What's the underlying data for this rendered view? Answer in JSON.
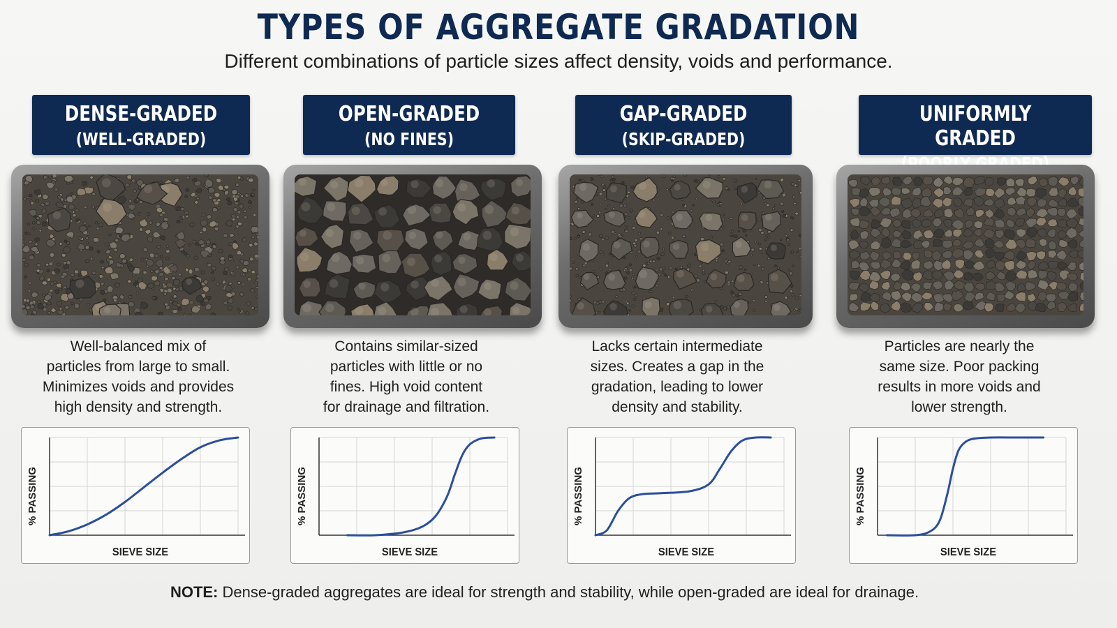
{
  "title": "TYPES OF AGGREGATE GRADATION",
  "subtitle": "Different combinations of particle sizes affect density, voids and performance.",
  "colors": {
    "header_bg": "#0f2a52",
    "curve": "#2a4f9a",
    "grid": "#d4d4d4"
  },
  "panels": [
    {
      "heading": "DENSE-GRADED",
      "subheading": "(WELL-GRADED)",
      "image": "tray-well-graded-aggregate",
      "description": [
        "Well-balanced mix of",
        "particles from large to small.",
        "Minimizes voids and provides",
        "high density and strength."
      ],
      "ylabel": "% PASSING",
      "xlabel": "SIEVE SIZE"
    },
    {
      "heading": "OPEN-GRADED",
      "subheading": "(NO FINES)",
      "image": "tray-open-graded-aggregate",
      "description": [
        "Contains similar-sized",
        "particles with little or no",
        "fines. High void content",
        "for drainage and filtration."
      ],
      "ylabel": "% PASSING",
      "xlabel": "SIEVE SIZE"
    },
    {
      "heading": "GAP-GRADED",
      "subheading": "(SKIP-GRADED)",
      "image": "tray-gap-graded-aggregate",
      "description": [
        "Lacks certain intermediate",
        "sizes. Creates a gap in the",
        "gradation, leading to lower",
        "density and stability."
      ],
      "ylabel": "% PASSING",
      "xlabel": "SIEVE SIZE"
    },
    {
      "heading": "UNIFORMLY GRADED",
      "subheading": "(POORLY GRADED)",
      "image": "tray-uniformly-graded-aggregate",
      "description": [
        "Particles are nearly the",
        "same size. Poor packing",
        "results in more voids and",
        "lower strength."
      ],
      "ylabel": "% PASSING",
      "xlabel": "SIEVE SIZE"
    }
  ],
  "chart_data": [
    {
      "type": "line",
      "title": "",
      "xlabel": "SIEVE SIZE",
      "ylabel": "% PASSING",
      "xlim": [
        0,
        1
      ],
      "ylim": [
        0,
        1
      ],
      "grid": true,
      "x": [
        0,
        0.1,
        0.2,
        0.3,
        0.4,
        0.5,
        0.6,
        0.7,
        0.8,
        0.9,
        1.0
      ],
      "y": [
        0,
        0.04,
        0.11,
        0.21,
        0.34,
        0.49,
        0.64,
        0.78,
        0.9,
        0.97,
        1.0
      ]
    },
    {
      "type": "line",
      "title": "",
      "xlabel": "SIEVE SIZE",
      "ylabel": "% PASSING",
      "xlim": [
        0,
        1
      ],
      "ylim": [
        0,
        1
      ],
      "grid": true,
      "x": [
        0.15,
        0.3,
        0.45,
        0.55,
        0.62,
        0.68,
        0.72,
        0.76,
        0.8,
        0.86,
        0.93
      ],
      "y": [
        0,
        0.0,
        0.03,
        0.09,
        0.2,
        0.4,
        0.62,
        0.82,
        0.93,
        0.99,
        1.0
      ]
    },
    {
      "type": "line",
      "title": "",
      "xlabel": "SIEVE SIZE",
      "ylabel": "% PASSING",
      "xlim": [
        0,
        1
      ],
      "ylim": [
        0,
        1
      ],
      "grid": true,
      "x": [
        0,
        0.06,
        0.12,
        0.18,
        0.25,
        0.35,
        0.5,
        0.6,
        0.66,
        0.72,
        0.78,
        0.85,
        0.93
      ],
      "y": [
        0,
        0.05,
        0.25,
        0.38,
        0.42,
        0.43,
        0.45,
        0.52,
        0.68,
        0.86,
        0.97,
        1.0,
        1.0
      ]
    },
    {
      "type": "line",
      "title": "",
      "xlabel": "SIEVE SIZE",
      "ylabel": "% PASSING",
      "xlim": [
        0,
        1
      ],
      "ylim": [
        0,
        1
      ],
      "grid": true,
      "x": [
        0.05,
        0.2,
        0.28,
        0.33,
        0.37,
        0.4,
        0.43,
        0.47,
        0.52,
        0.6,
        0.75,
        0.88
      ],
      "y": [
        0,
        0.0,
        0.04,
        0.15,
        0.42,
        0.68,
        0.87,
        0.96,
        0.99,
        1.0,
        1.0,
        1.0
      ]
    }
  ],
  "note": {
    "label": "NOTE:",
    "text": " Dense-graded aggregates are ideal for strength and stability, while open-graded are ideal for drainage."
  }
}
